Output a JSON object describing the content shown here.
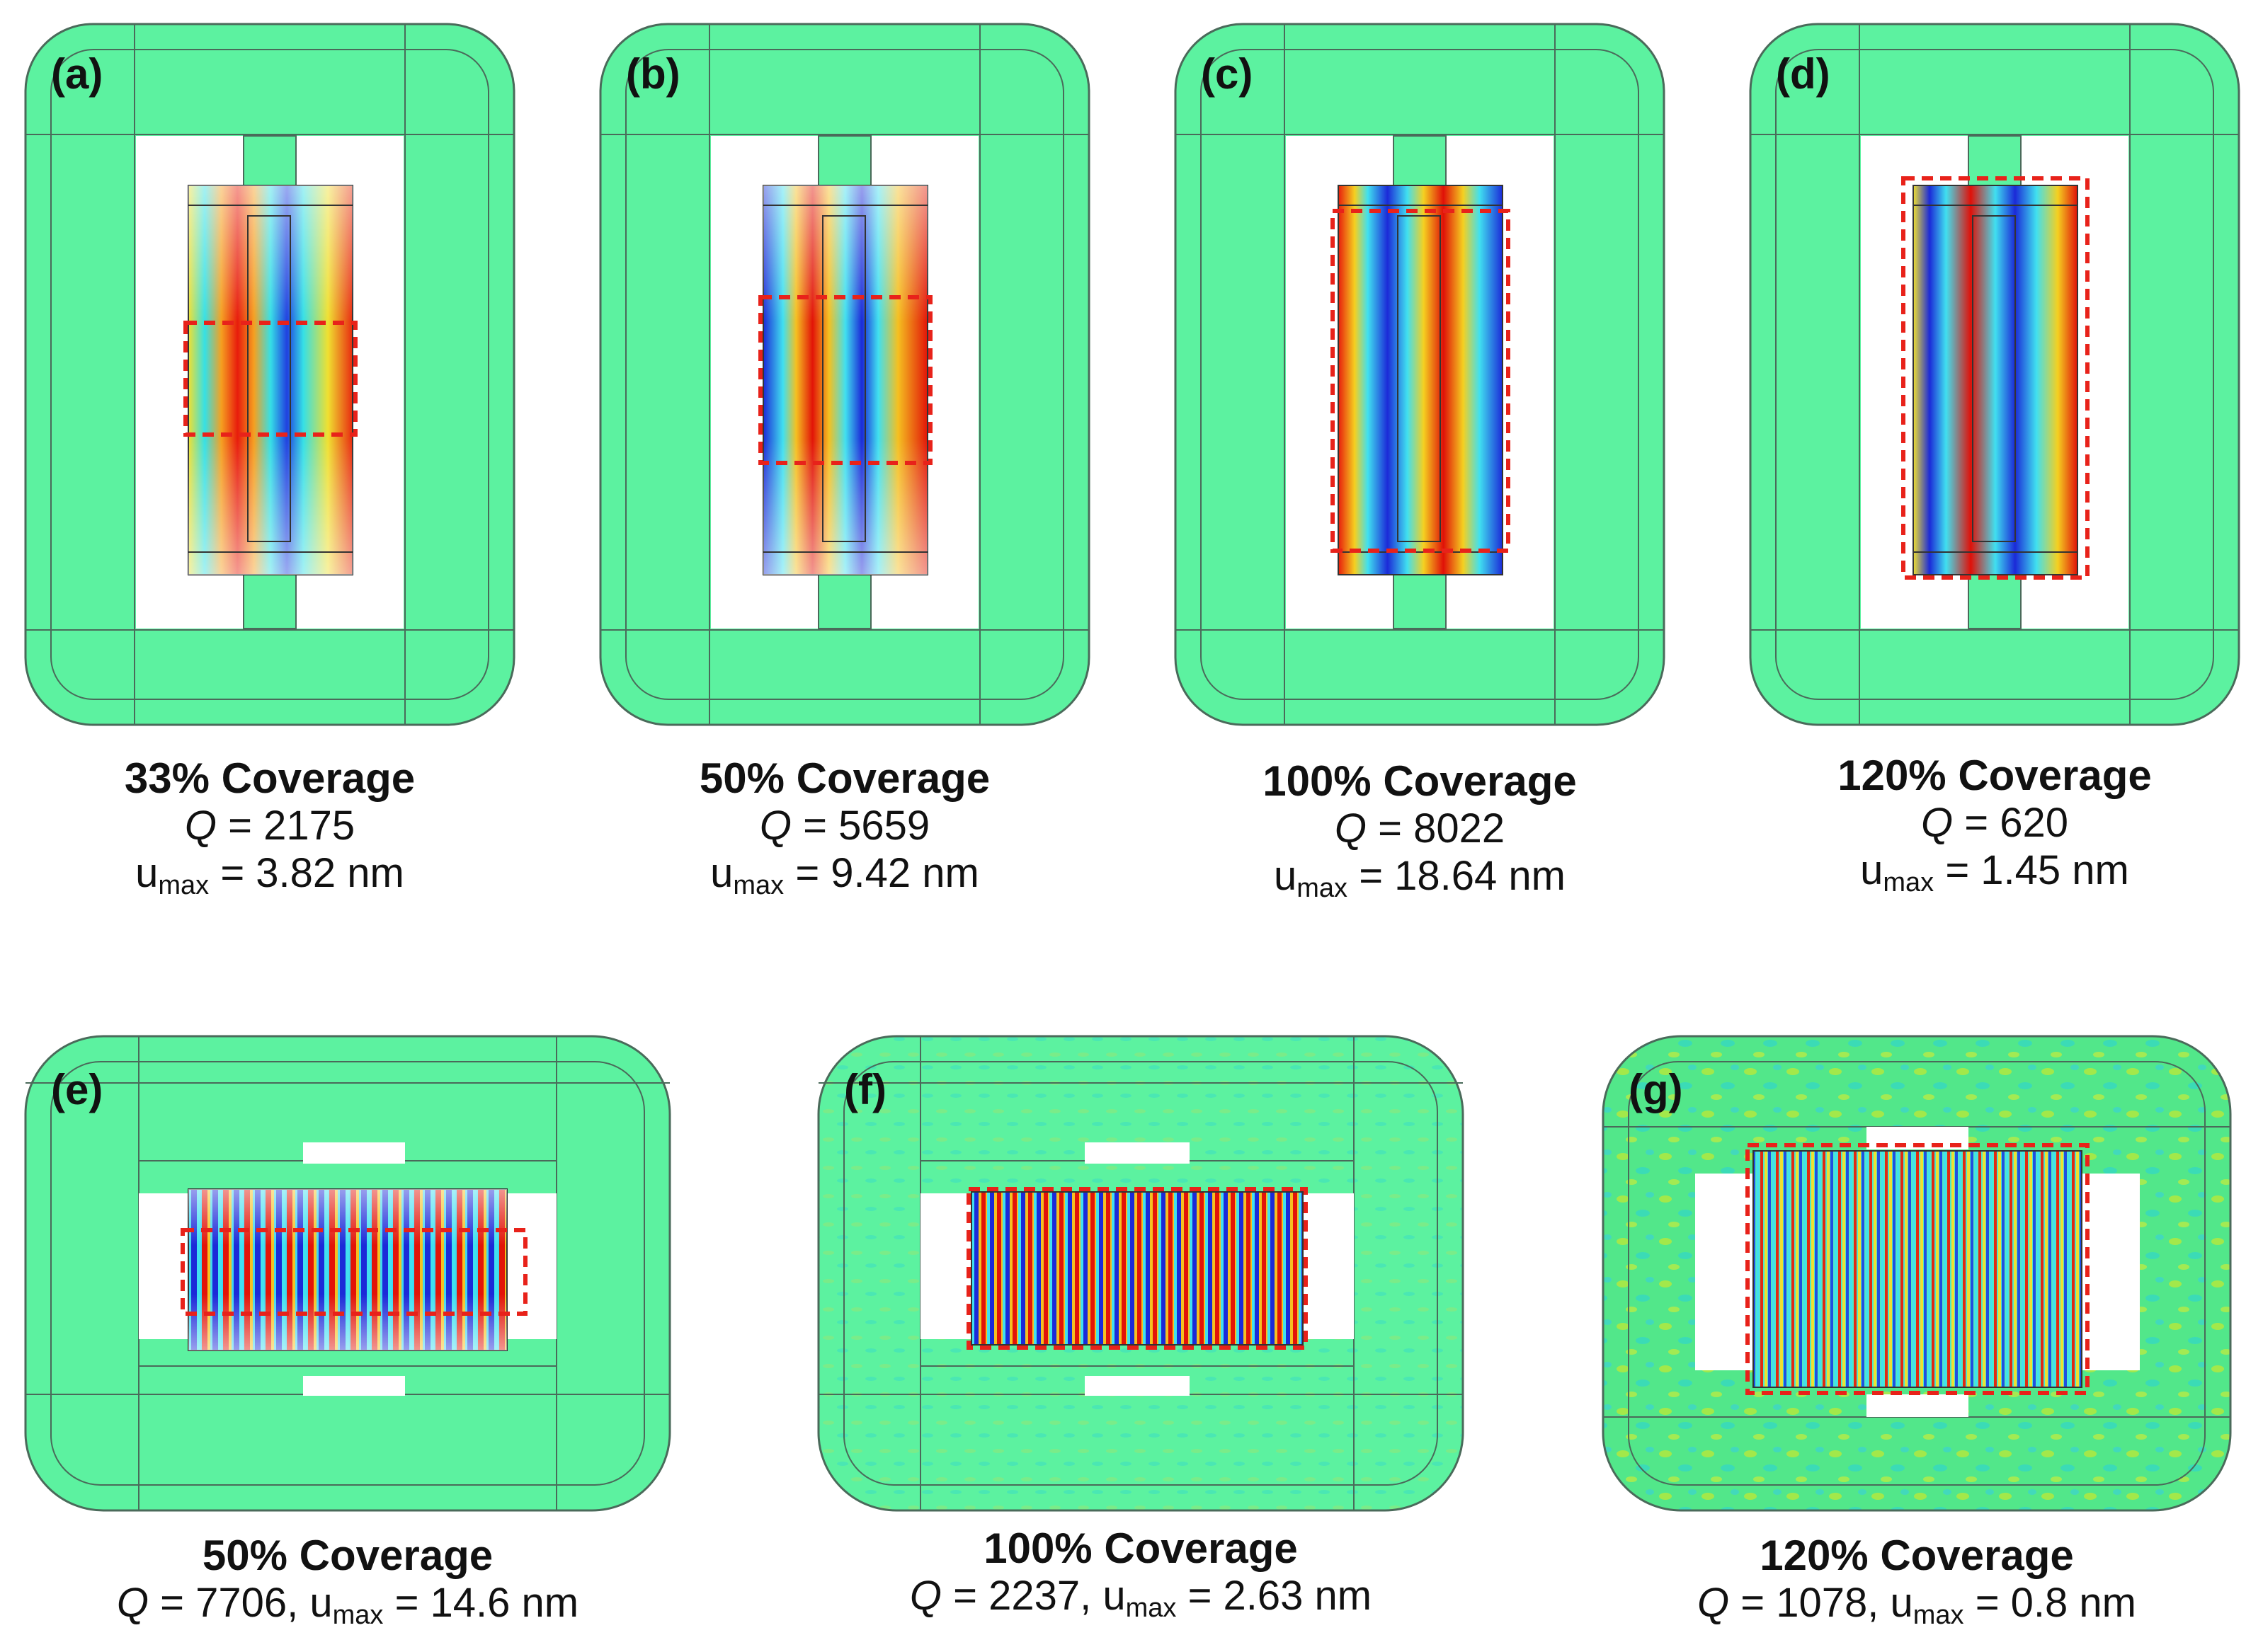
{
  "panels": [
    {
      "label": "(a)",
      "coverage": "33% Coverage",
      "q_label": "Q",
      "q_value": "= 2175",
      "u_label": "u",
      "u_sub": "max",
      "u_value": "= 3.82 nm"
    },
    {
      "label": "(b)",
      "coverage": "50% Coverage",
      "q_label": "Q",
      "q_value": "= 5659",
      "u_label": "u",
      "u_sub": "max",
      "u_value": "= 9.42 nm"
    },
    {
      "label": "(c)",
      "coverage": "100% Coverage",
      "q_label": "Q",
      "q_value": "= 8022",
      "u_label": "u",
      "u_sub": "max",
      "u_value": "= 18.64 nm"
    },
    {
      "label": "(d)",
      "coverage": "120% Coverage",
      "q_label": "Q",
      "q_value": "= 620",
      "u_label": "u",
      "u_sub": "max",
      "u_value": "= 1.45 nm"
    },
    {
      "label": "(e)",
      "coverage": "50% Coverage",
      "q_label": "Q",
      "q_value": "= 7706,",
      "u_label": "u",
      "u_sub": "max",
      "u_value": "= 14.6 nm"
    },
    {
      "label": "(f)",
      "coverage": "100% Coverage",
      "q_label": "Q",
      "q_value": "= 2237,",
      "u_label": "u",
      "u_sub": "max",
      "u_value": "= 2.63 nm"
    },
    {
      "label": "(g)",
      "coverage": "120% Coverage",
      "q_label": "Q",
      "q_value": "= 1078,",
      "u_label": "u",
      "u_sub": "max",
      "u_value": "= 0.8 nm"
    }
  ],
  "colors": {
    "field_background": "#5cf2a0",
    "field_background_g": "#52e78a",
    "hole": "#ffffff",
    "positive": "#e81c0c",
    "negative": "#1a2ad8",
    "nodal": "#37e6e6",
    "warm": "#f3e431",
    "dash": "#e8221a"
  }
}
